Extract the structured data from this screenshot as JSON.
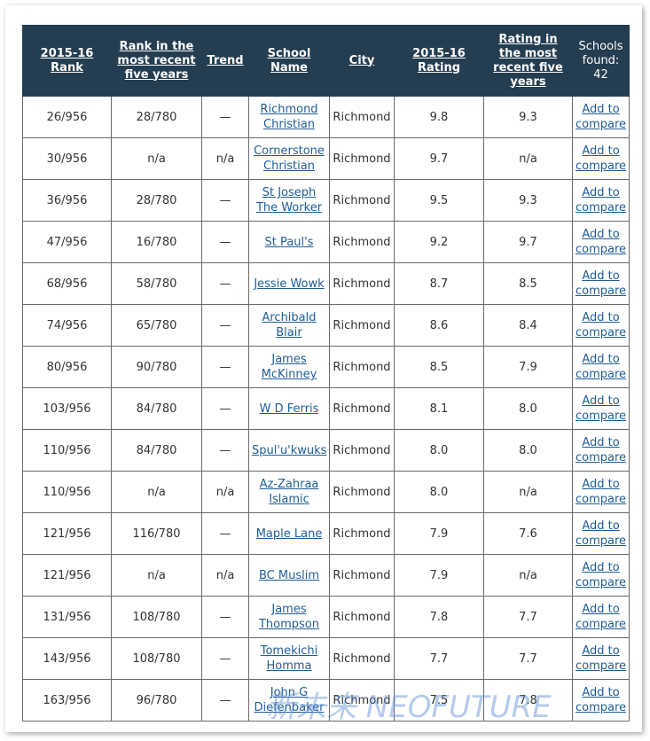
{
  "table": {
    "header": [
      "2015-16 Rank",
      "Rank in the most recent five years",
      "Trend",
      "School Name",
      "City",
      "2015-16 Rating",
      "Rating in the most recent five years",
      "Schools found: 42"
    ],
    "rows": [
      [
        "26/956",
        "28/780",
        "—",
        "Richmond Christian",
        "Richmond",
        "9.8",
        "9.3",
        "Add to compare"
      ],
      [
        "30/956",
        "n/a",
        "n/a",
        "Cornerstone Christian",
        "Richmond",
        "9.7",
        "n/a",
        "Add to compare"
      ],
      [
        "36/956",
        "28/780",
        "—",
        "St Joseph The Worker",
        "Richmond",
        "9.5",
        "9.3",
        "Add to compare"
      ],
      [
        "47/956",
        "16/780",
        "—",
        "St Paul's",
        "Richmond",
        "9.2",
        "9.7",
        "Add to compare"
      ],
      [
        "68/956",
        "58/780",
        "—",
        "Jessie Wowk",
        "Richmond",
        "8.7",
        "8.5",
        "Add to compare"
      ],
      [
        "74/956",
        "65/780",
        "—",
        "Archibald Blair",
        "Richmond",
        "8.6",
        "8.4",
        "Add to compare"
      ],
      [
        "80/956",
        "90/780",
        "—",
        "James McKinney",
        "Richmond",
        "8.5",
        "7.9",
        "Add to compare"
      ],
      [
        "103/956",
        "84/780",
        "—",
        "W D Ferris",
        "Richmond",
        "8.1",
        "8.0",
        "Add to compare"
      ],
      [
        "110/956",
        "84/780",
        "—",
        "Spul'u'kwuks",
        "Richmond",
        "8.0",
        "8.0",
        "Add to compare"
      ],
      [
        "110/956",
        "n/a",
        "n/a",
        "Az-Zahraa Islamic",
        "Richmond",
        "8.0",
        "n/a",
        "Add to compare"
      ],
      [
        "121/956",
        "116/780",
        "—",
        "Maple Lane",
        "Richmond",
        "7.9",
        "7.6",
        "Add to compare"
      ],
      [
        "121/956",
        "n/a",
        "n/a",
        "BC Muslim",
        "Richmond",
        "7.9",
        "n/a",
        "Add to compare"
      ],
      [
        "131/956",
        "108/780",
        "—",
        "James Thompson",
        "Richmond",
        "7.8",
        "7.7",
        "Add to compare"
      ],
      [
        "143/956",
        "108/780",
        "—",
        "Tomekichi Homma",
        "Richmond",
        "7.7",
        "7.7",
        "Add to compare"
      ],
      [
        "163/956",
        "96/780",
        "—",
        "John G Diefenbaker",
        "Richmond",
        "7.5",
        "7.8",
        "Add to compare"
      ]
    ]
  },
  "watermark": "新未来 NEOFUTURE"
}
